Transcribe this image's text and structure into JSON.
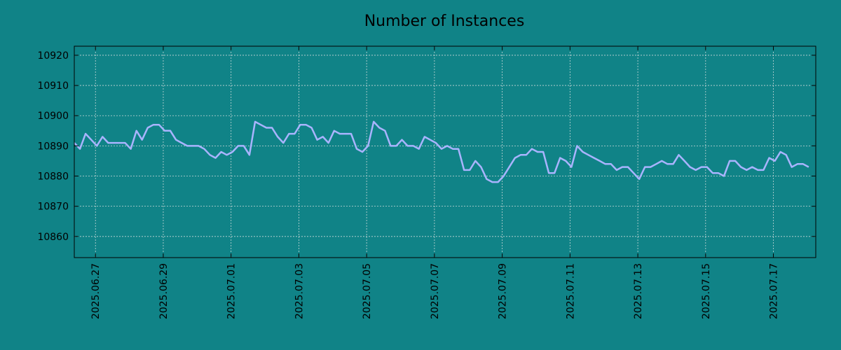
{
  "chart_data": {
    "type": "line",
    "title": "Number of Instances",
    "xlabel": "",
    "ylabel": "",
    "xlim": [
      "2025-06-26 09:00",
      "2025-07-18 06:00"
    ],
    "ylim": [
      10853,
      10923
    ],
    "yticks": [
      10860,
      10870,
      10880,
      10890,
      10900,
      10910,
      10920
    ],
    "xticks": [
      "2025.06.27",
      "2025.06.29",
      "2025.07.01",
      "2025.07.03",
      "2025.07.05",
      "2025.07.07",
      "2025.07.09",
      "2025.07.11",
      "2025.07.13",
      "2025.07.15",
      "2025.07.17"
    ],
    "grid": true,
    "series": [
      {
        "color": "#a9b4ff",
        "points": [
          [
            "2025-06-26 09:00",
            10891
          ],
          [
            "2025-06-26 13:00",
            10889
          ],
          [
            "2025-06-26 17:00",
            10894
          ],
          [
            "2025-06-26 21:00",
            10892
          ],
          [
            "2025-06-27 01:00",
            10890
          ],
          [
            "2025-06-27 05:00",
            10893
          ],
          [
            "2025-06-27 09:00",
            10891
          ],
          [
            "2025-06-27 13:00",
            10891
          ],
          [
            "2025-06-27 17:00",
            10891
          ],
          [
            "2025-06-27 21:00",
            10891
          ],
          [
            "2025-06-28 01:00",
            10889
          ],
          [
            "2025-06-28 05:00",
            10895
          ],
          [
            "2025-06-28 09:00",
            10892
          ],
          [
            "2025-06-28 13:00",
            10896
          ],
          [
            "2025-06-28 17:00",
            10897
          ],
          [
            "2025-06-28 21:00",
            10897
          ],
          [
            "2025-06-29 01:00",
            10895
          ],
          [
            "2025-06-29 05:00",
            10895
          ],
          [
            "2025-06-29 09:00",
            10892
          ],
          [
            "2025-06-29 13:00",
            10891
          ],
          [
            "2025-06-29 17:00",
            10890
          ],
          [
            "2025-06-29 21:00",
            10890
          ],
          [
            "2025-06-30 01:00",
            10890
          ],
          [
            "2025-06-30 05:00",
            10889
          ],
          [
            "2025-06-30 09:00",
            10887
          ],
          [
            "2025-06-30 13:00",
            10886
          ],
          [
            "2025-06-30 17:00",
            10888
          ],
          [
            "2025-06-30 21:00",
            10887
          ],
          [
            "2025-07-01 01:00",
            10888
          ],
          [
            "2025-07-01 05:00",
            10890
          ],
          [
            "2025-07-01 09:00",
            10890
          ],
          [
            "2025-07-01 13:00",
            10887
          ],
          [
            "2025-07-01 17:00",
            10898
          ],
          [
            "2025-07-01 21:00",
            10897
          ],
          [
            "2025-07-02 01:00",
            10896
          ],
          [
            "2025-07-02 05:00",
            10896
          ],
          [
            "2025-07-02 09:00",
            10893
          ],
          [
            "2025-07-02 13:00",
            10891
          ],
          [
            "2025-07-02 17:00",
            10894
          ],
          [
            "2025-07-02 21:00",
            10894
          ],
          [
            "2025-07-03 01:00",
            10897
          ],
          [
            "2025-07-03 05:00",
            10897
          ],
          [
            "2025-07-03 09:00",
            10896
          ],
          [
            "2025-07-03 13:00",
            10892
          ],
          [
            "2025-07-03 17:00",
            10893
          ],
          [
            "2025-07-03 21:00",
            10891
          ],
          [
            "2025-07-04 01:00",
            10895
          ],
          [
            "2025-07-04 05:00",
            10894
          ],
          [
            "2025-07-04 09:00",
            10894
          ],
          [
            "2025-07-04 13:00",
            10894
          ],
          [
            "2025-07-04 17:00",
            10889
          ],
          [
            "2025-07-04 21:00",
            10888
          ],
          [
            "2025-07-05 01:00",
            10890
          ],
          [
            "2025-07-05 05:00",
            10898
          ],
          [
            "2025-07-05 09:00",
            10896
          ],
          [
            "2025-07-05 13:00",
            10895
          ],
          [
            "2025-07-05 17:00",
            10890
          ],
          [
            "2025-07-05 21:00",
            10890
          ],
          [
            "2025-07-06 01:00",
            10892
          ],
          [
            "2025-07-06 05:00",
            10890
          ],
          [
            "2025-07-06 09:00",
            10890
          ],
          [
            "2025-07-06 13:00",
            10889
          ],
          [
            "2025-07-06 17:00",
            10893
          ],
          [
            "2025-07-06 21:00",
            10892
          ],
          [
            "2025-07-07 01:00",
            10891
          ],
          [
            "2025-07-07 05:00",
            10889
          ],
          [
            "2025-07-07 09:00",
            10890
          ],
          [
            "2025-07-07 13:00",
            10889
          ],
          [
            "2025-07-07 17:00",
            10889
          ],
          [
            "2025-07-07 21:00",
            10882
          ],
          [
            "2025-07-08 01:00",
            10882
          ],
          [
            "2025-07-08 05:00",
            10885
          ],
          [
            "2025-07-08 09:00",
            10883
          ],
          [
            "2025-07-08 13:00",
            10879
          ],
          [
            "2025-07-08 17:00",
            10878
          ],
          [
            "2025-07-08 21:00",
            10878
          ],
          [
            "2025-07-09 01:00",
            10880
          ],
          [
            "2025-07-09 05:00",
            10883
          ],
          [
            "2025-07-09 09:00",
            10886
          ],
          [
            "2025-07-09 13:00",
            10887
          ],
          [
            "2025-07-09 17:00",
            10887
          ],
          [
            "2025-07-09 21:00",
            10889
          ],
          [
            "2025-07-10 01:00",
            10888
          ],
          [
            "2025-07-10 05:00",
            10888
          ],
          [
            "2025-07-10 09:00",
            10881
          ],
          [
            "2025-07-10 13:00",
            10881
          ],
          [
            "2025-07-10 17:00",
            10886
          ],
          [
            "2025-07-10 21:00",
            10885
          ],
          [
            "2025-07-11 01:00",
            10883
          ],
          [
            "2025-07-11 05:00",
            10890
          ],
          [
            "2025-07-11 09:00",
            10888
          ],
          [
            "2025-07-11 13:00",
            10887
          ],
          [
            "2025-07-11 17:00",
            10886
          ],
          [
            "2025-07-11 21:00",
            10885
          ],
          [
            "2025-07-12 01:00",
            10884
          ],
          [
            "2025-07-12 05:00",
            10884
          ],
          [
            "2025-07-12 09:00",
            10882
          ],
          [
            "2025-07-12 13:00",
            10883
          ],
          [
            "2025-07-12 17:00",
            10883
          ],
          [
            "2025-07-12 21:00",
            10881
          ],
          [
            "2025-07-13 01:00",
            10879
          ],
          [
            "2025-07-13 05:00",
            10883
          ],
          [
            "2025-07-13 09:00",
            10883
          ],
          [
            "2025-07-13 13:00",
            10884
          ],
          [
            "2025-07-13 17:00",
            10885
          ],
          [
            "2025-07-13 21:00",
            10884
          ],
          [
            "2025-07-14 01:00",
            10884
          ],
          [
            "2025-07-14 05:00",
            10887
          ],
          [
            "2025-07-14 09:00",
            10885
          ],
          [
            "2025-07-14 13:00",
            10883
          ],
          [
            "2025-07-14 17:00",
            10882
          ],
          [
            "2025-07-14 21:00",
            10883
          ],
          [
            "2025-07-15 01:00",
            10883
          ],
          [
            "2025-07-15 05:00",
            10881
          ],
          [
            "2025-07-15 09:00",
            10881
          ],
          [
            "2025-07-15 13:00",
            10880
          ],
          [
            "2025-07-15 17:00",
            10885
          ],
          [
            "2025-07-15 21:00",
            10885
          ],
          [
            "2025-07-16 01:00",
            10883
          ],
          [
            "2025-07-16 05:00",
            10882
          ],
          [
            "2025-07-16 09:00",
            10883
          ],
          [
            "2025-07-16 13:00",
            10882
          ],
          [
            "2025-07-16 17:00",
            10882
          ],
          [
            "2025-07-16 21:00",
            10886
          ],
          [
            "2025-07-17 01:00",
            10885
          ],
          [
            "2025-07-17 05:00",
            10888
          ],
          [
            "2025-07-17 09:00",
            10887
          ],
          [
            "2025-07-17 13:00",
            10883
          ],
          [
            "2025-07-17 17:00",
            10884
          ],
          [
            "2025-07-17 21:00",
            10884
          ],
          [
            "2025-07-18 01:00",
            10883
          ]
        ]
      }
    ]
  },
  "colors": {
    "background": "#108387",
    "line": "#a9b4ff",
    "grid": "#c8d8d8",
    "axis": "#000000"
  }
}
